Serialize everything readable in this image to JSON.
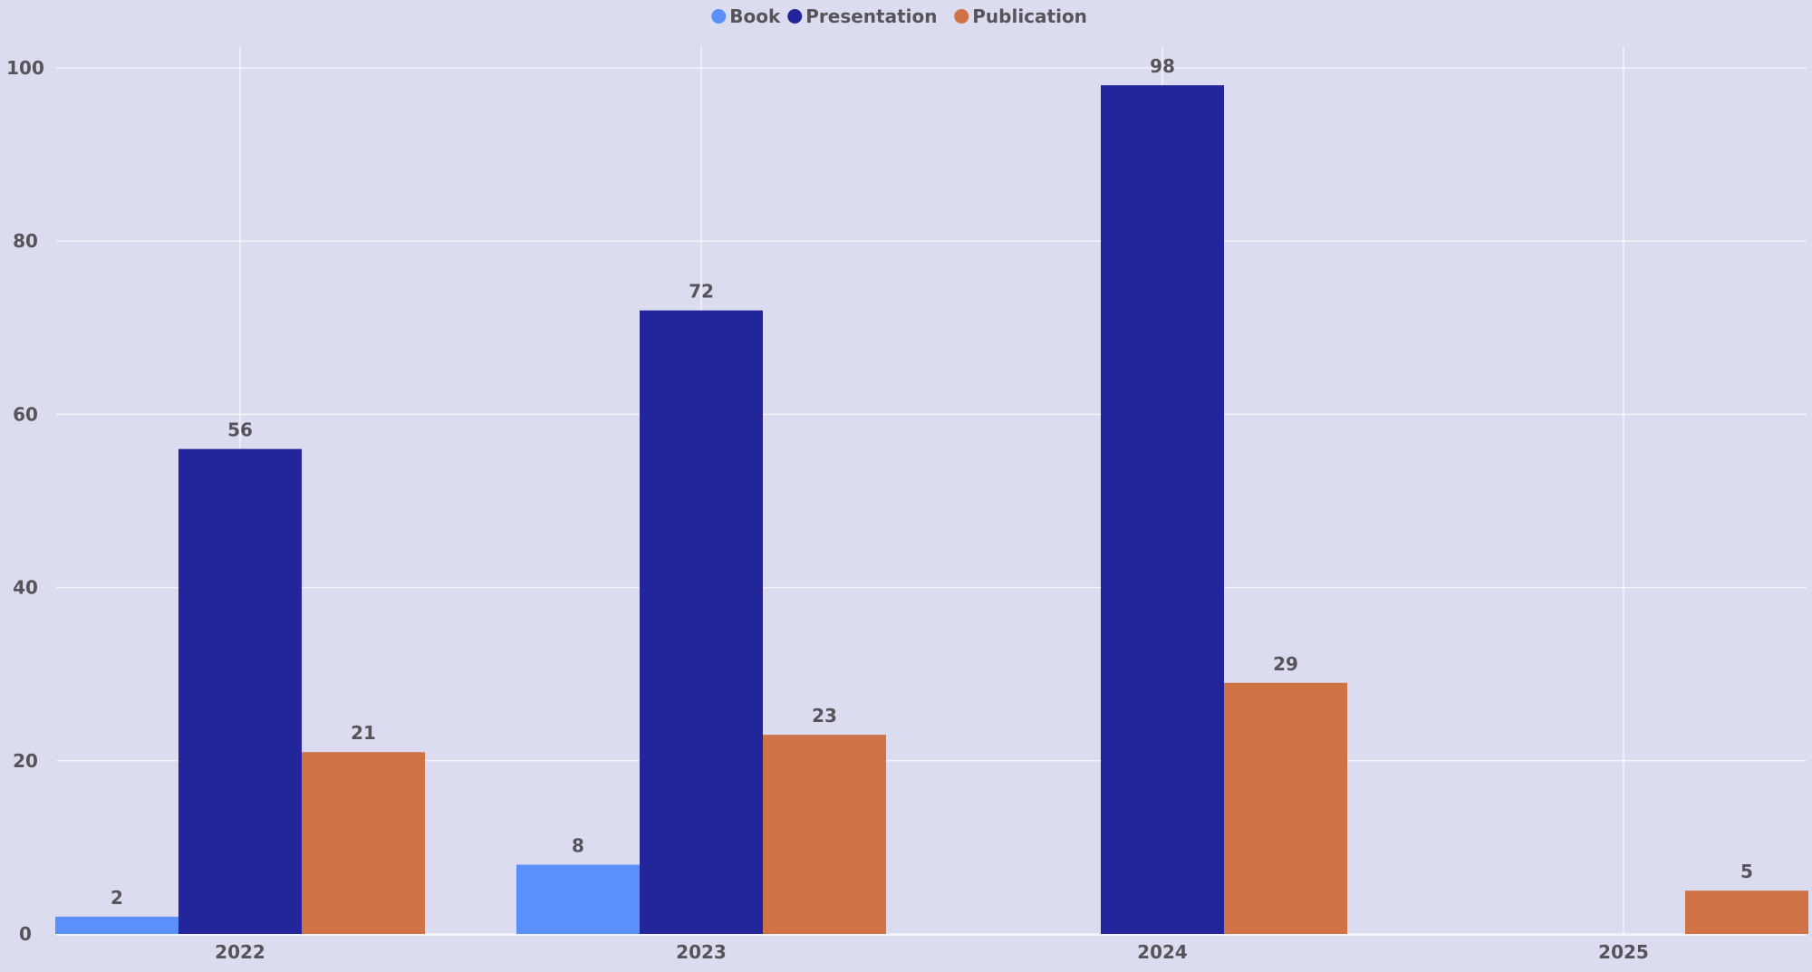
{
  "chart_data": {
    "type": "bar",
    "title": "",
    "xlabel": "",
    "ylabel": "",
    "categories": [
      "2022",
      "2023",
      "2024",
      "2025"
    ],
    "series": [
      {
        "name": "Book",
        "color": "#5b8ff9",
        "values": [
          2,
          8,
          null,
          null
        ]
      },
      {
        "name": "Presentation",
        "color": "#23269b",
        "values": [
          56,
          72,
          98,
          null
        ]
      },
      {
        "name": "Publication",
        "color": "#cf7246",
        "values": [
          21,
          23,
          29,
          5
        ]
      }
    ],
    "ylim": [
      0,
      100
    ],
    "yticks": [
      0,
      20,
      40,
      60,
      80,
      100
    ],
    "grid": true,
    "legend_position": "top-center",
    "data_labels": true,
    "background": "#dcdcf0"
  }
}
